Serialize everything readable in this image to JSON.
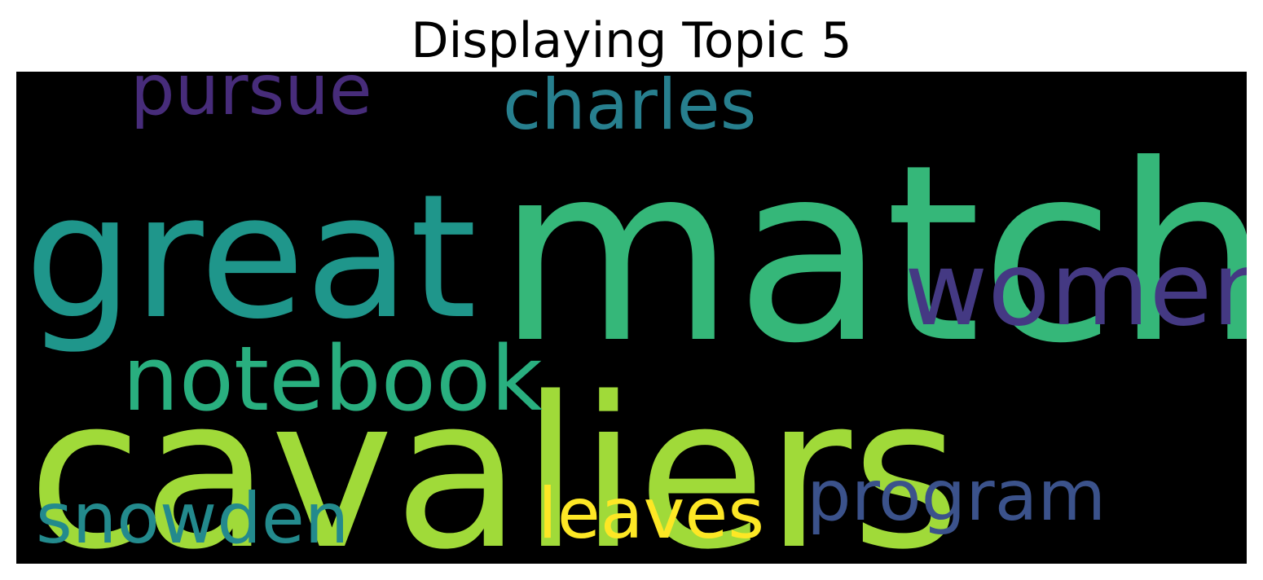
{
  "title": "Displaying Topic 5",
  "background_color": "#000000",
  "words": [
    {
      "id": "cavaliers",
      "text": "cavaliers",
      "color": "#a0da39"
    },
    {
      "id": "match",
      "text": "match",
      "color": "#35b779"
    },
    {
      "id": "great",
      "text": "great",
      "color": "#1f968b"
    },
    {
      "id": "notebook",
      "text": "notebook",
      "color": "#29af7f"
    },
    {
      "id": "women",
      "text": "women",
      "color": "#443983"
    },
    {
      "id": "charles",
      "text": "charles",
      "color": "#277f8e"
    },
    {
      "id": "pursue",
      "text": "pursue",
      "color": "#472c7a"
    },
    {
      "id": "program",
      "text": "program",
      "color": "#3b528b"
    },
    {
      "id": "snowden",
      "text": "snowden",
      "color": "#238a8d"
    },
    {
      "id": "leaves",
      "text": "leaves",
      "color": "#fde725"
    }
  ]
}
